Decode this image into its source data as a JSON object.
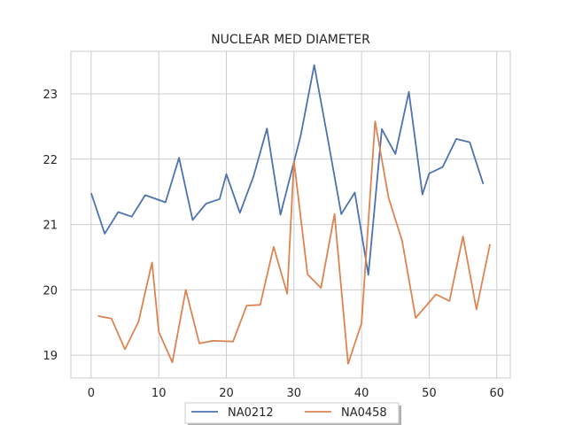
{
  "chart_data": {
    "type": "line",
    "title": "NUCLEAR MED DIAMETER",
    "xlabel": "",
    "ylabel": "",
    "xlim": [
      -3,
      62
    ],
    "ylim": [
      18.65,
      23.65
    ],
    "xticks": [
      0,
      10,
      20,
      30,
      40,
      50,
      60
    ],
    "yticks": [
      19,
      20,
      21,
      22,
      23
    ],
    "grid": true,
    "legend_position": "bottom-center",
    "series": [
      {
        "name": "NA0212",
        "color": "#4c72b0",
        "x": [
          0,
          2,
          4,
          6,
          8,
          11,
          13,
          15,
          17,
          19,
          20,
          22,
          24,
          26,
          28,
          31,
          33,
          35,
          37,
          39,
          41,
          43,
          45,
          47,
          49,
          50,
          52,
          54,
          56,
          58
        ],
        "y": [
          21.48,
          20.86,
          21.19,
          21.12,
          21.45,
          21.34,
          22.02,
          21.07,
          21.32,
          21.39,
          21.77,
          21.18,
          21.73,
          22.47,
          21.15,
          22.36,
          23.44,
          22.31,
          21.16,
          21.49,
          20.23,
          22.46,
          22.08,
          23.03,
          21.46,
          21.78,
          21.88,
          22.31,
          22.26,
          21.62
        ]
      },
      {
        "name": "NA0458",
        "color": "#dd8452",
        "x": [
          1,
          3,
          5,
          7,
          9,
          10,
          12,
          14,
          16,
          18,
          21,
          23,
          25,
          27,
          29,
          30,
          32,
          34,
          36,
          38,
          40,
          42,
          44,
          46,
          48,
          51,
          53,
          55,
          57,
          59
        ],
        "y": [
          19.6,
          19.56,
          19.09,
          19.51,
          20.42,
          19.36,
          18.89,
          20.0,
          19.18,
          19.22,
          19.21,
          19.76,
          19.77,
          20.66,
          19.94,
          21.97,
          20.24,
          20.03,
          21.16,
          18.87,
          19.49,
          22.58,
          21.41,
          20.75,
          19.57,
          19.93,
          19.83,
          20.82,
          19.7,
          20.7
        ]
      }
    ]
  }
}
